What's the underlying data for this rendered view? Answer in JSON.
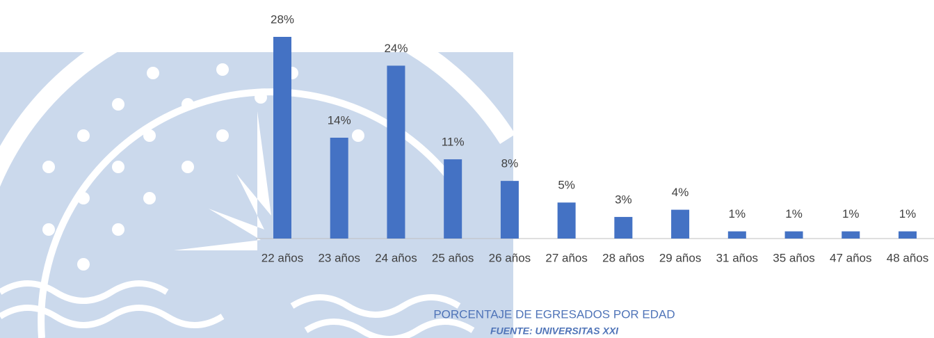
{
  "chart_data": {
    "type": "bar",
    "title": "PORCENTAJE DE EGRESADOS POR EDAD",
    "subtitle": "FUENTE: UNIVERSITAS XXI",
    "categories": [
      "22 años",
      "23 años",
      "24 años",
      "25 años",
      "26 años",
      "27 años",
      "28 años",
      "29 años",
      "31 años",
      "35 años",
      "47 años",
      "48 años"
    ],
    "values": [
      28,
      14,
      24,
      11,
      8,
      5,
      3,
      4,
      1,
      1,
      1,
      1
    ],
    "value_labels": [
      "28%",
      "14%",
      "24%",
      "11%",
      "8%",
      "5%",
      "3%",
      "4%",
      "1%",
      "1%",
      "1%",
      "1%"
    ],
    "color": "#4472c4"
  }
}
